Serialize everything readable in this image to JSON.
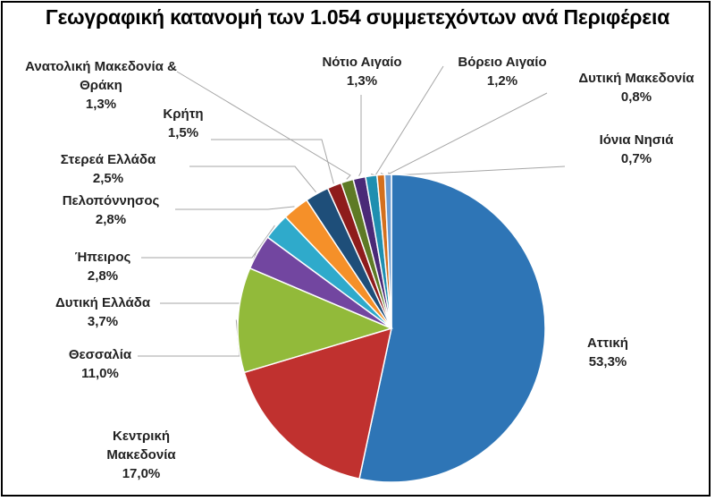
{
  "chart_data": {
    "type": "pie",
    "title": "Γεωγραφική κατανομή των 1.054 συμμετεχόντων ανά Περιφέρεια",
    "unit": "%",
    "slices": [
      {
        "label": "Αττική",
        "value": 53.3,
        "display": "53,3%",
        "color": "#2E75B6"
      },
      {
        "label": "Κεντρική Μακεδονία",
        "value": 17.0,
        "display": "17,0%",
        "color": "#C0312F"
      },
      {
        "label": "Θεσσαλία",
        "value": 11.0,
        "display": "11,0%",
        "color": "#92BA3A"
      },
      {
        "label": "Δυτική Ελλάδα",
        "value": 3.7,
        "display": "3,7%",
        "color": "#7246A0"
      },
      {
        "label": "Ήπειρος",
        "value": 2.8,
        "display": "2,8%",
        "color": "#2FAACB"
      },
      {
        "label": "Πελοπόννησος",
        "value": 2.8,
        "display": "2,8%",
        "color": "#F59029"
      },
      {
        "label": "Στερεά Ελλάδα",
        "value": 2.5,
        "display": "2,5%",
        "color": "#1E4E79"
      },
      {
        "label": "Κρήτη",
        "value": 1.5,
        "display": "1,5%",
        "color": "#8E1C1C"
      },
      {
        "label": "Ανατολική Μακεδονία & Θράκη",
        "value": 1.3,
        "display": "1,3%",
        "color": "#5E7A25"
      },
      {
        "label": "Νότιο Αιγαίο",
        "value": 1.3,
        "display": "1,3%",
        "color": "#4A2A77"
      },
      {
        "label": "Βόρειο Αιγαίο",
        "value": 1.2,
        "display": "1,2%",
        "color": "#1F8FB0"
      },
      {
        "label": "Δυτική Μακεδονία",
        "value": 0.8,
        "display": "0,8%",
        "color": "#D4701E"
      },
      {
        "label": "Ιόνια Νησιά",
        "value": 0.7,
        "display": "0,7%",
        "color": "#6A9BD1"
      }
    ]
  }
}
